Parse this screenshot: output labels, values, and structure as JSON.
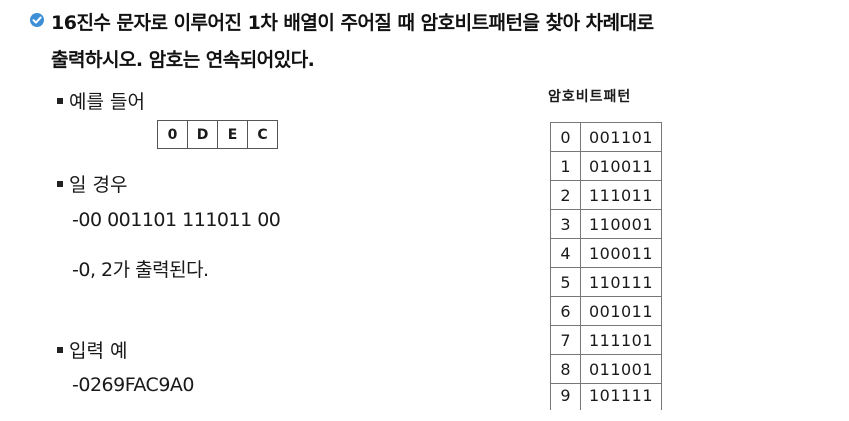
{
  "heading": {
    "icon": "check-circle-icon",
    "accent_color": "#3d8fd8",
    "line1": "16진수 문자로 이루어진 1차 배열이 주어질 때 암호비트패턴을 찾아 차례대로",
    "line2": "출력하시오. 암호는 연속되어있다."
  },
  "example": {
    "label": "예를 들어",
    "cells": [
      "0",
      "D",
      "E",
      "C"
    ],
    "case_label": "일 경우",
    "result_lines": [
      "-00 001101 111011 00",
      "-0, 2가 출력된다."
    ]
  },
  "input_example": {
    "label": "입력 예",
    "value": "-0269FAC9A0"
  },
  "code_table": {
    "caption": "암호비트패턴",
    "rows": [
      {
        "index": "0",
        "pattern": "001101"
      },
      {
        "index": "1",
        "pattern": "010011"
      },
      {
        "index": "2",
        "pattern": "111011"
      },
      {
        "index": "3",
        "pattern": "110001"
      },
      {
        "index": "4",
        "pattern": "100011"
      },
      {
        "index": "5",
        "pattern": "110111"
      },
      {
        "index": "6",
        "pattern": "001011"
      },
      {
        "index": "7",
        "pattern": "111101"
      },
      {
        "index": "8",
        "pattern": "011001"
      },
      {
        "index": "9",
        "pattern": "101111"
      }
    ]
  }
}
